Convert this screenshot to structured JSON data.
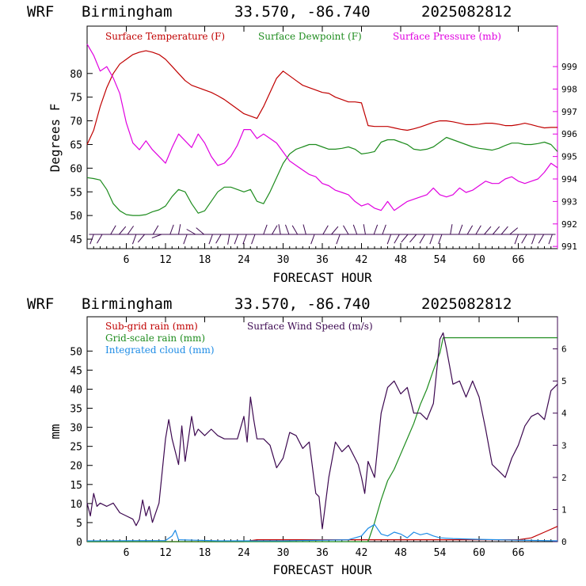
{
  "colors": {
    "temp": "#c00000",
    "dew": "#1e8c1e",
    "press": "#e000e0",
    "barb": "#3c0850",
    "subrain": "#c00000",
    "gridrain": "#1e8c1e",
    "cloud": "#1e8ce6",
    "wind": "#3c0850"
  },
  "chart_data": [
    {
      "type": "line",
      "header": {
        "model": "WRF",
        "station": "Birmingham",
        "coords": "33.570, -86.740",
        "init": "2025082812"
      },
      "xlabel": "FORECAST HOUR",
      "ylabel": "Degrees F",
      "x_ticks": [
        "6",
        "12",
        "18",
        "24",
        "30",
        "36",
        "42",
        "48",
        "54",
        "60",
        "66"
      ],
      "xlim": [
        0,
        72
      ],
      "ylim": [
        43,
        90
      ],
      "y_ticks": [
        "45",
        "50",
        "55",
        "60",
        "65",
        "70",
        "75",
        "80"
      ],
      "y2lim": [
        990.9,
        1000.8
      ],
      "y2_ticks": [
        "991",
        "992",
        "993",
        "994",
        "995",
        "996",
        "997",
        "998",
        "999"
      ],
      "legend": [
        "Surface Temperature (F)",
        "Surface Dewpoint (F)",
        "Surface Pressure (mb)"
      ],
      "series": [
        {
          "name": "Surface Temperature (F)",
          "axis": "left",
          "x": [
            0,
            1,
            2,
            3,
            4,
            5,
            6,
            7,
            8,
            9,
            10,
            11,
            12,
            13,
            14,
            15,
            16,
            17,
            18,
            19,
            20,
            21,
            22,
            23,
            24,
            25,
            26,
            27,
            28,
            29,
            30,
            31,
            32,
            33,
            34,
            35,
            36,
            37,
            38,
            39,
            40,
            41,
            42,
            43,
            44,
            45,
            46,
            47,
            48,
            49,
            50,
            51,
            52,
            53,
            54,
            55,
            56,
            57,
            58,
            59,
            60,
            61,
            62,
            63,
            64,
            65,
            66,
            67,
            68,
            69,
            70,
            71,
            72
          ],
          "values": [
            65,
            68,
            73,
            77,
            80,
            82,
            83,
            84,
            84.5,
            84.8,
            84.5,
            84,
            83,
            81.5,
            80,
            78.5,
            77.5,
            77,
            76.5,
            76,
            75.3,
            74.5,
            73.5,
            72.5,
            71.5,
            71,
            70.5,
            73,
            76,
            79,
            80.5,
            79.5,
            78.5,
            77.5,
            77,
            76.5,
            76,
            75.8,
            75,
            74.5,
            74,
            74,
            73.8,
            69,
            68.8,
            68.8,
            68.8,
            68.5,
            68.2,
            68,
            68.3,
            68.7,
            69.2,
            69.7,
            70,
            70,
            69.8,
            69.5,
            69.2,
            69.2,
            69.3,
            69.5,
            69.5,
            69.3,
            69,
            69,
            69.2,
            69.5,
            69.2,
            68.8,
            68.5,
            68.6,
            68.6
          ]
        },
        {
          "name": "Surface Dewpoint (F)",
          "axis": "left",
          "x": [
            0,
            1,
            2,
            3,
            4,
            5,
            6,
            7,
            8,
            9,
            10,
            11,
            12,
            13,
            14,
            15,
            16,
            17,
            18,
            19,
            20,
            21,
            22,
            23,
            24,
            25,
            26,
            27,
            28,
            29,
            30,
            31,
            32,
            33,
            34,
            35,
            36,
            37,
            38,
            39,
            40,
            41,
            42,
            43,
            44,
            45,
            46,
            47,
            48,
            49,
            50,
            51,
            52,
            53,
            54,
            55,
            56,
            57,
            58,
            59,
            60,
            61,
            62,
            63,
            64,
            65,
            66,
            67,
            68,
            69,
            70,
            71,
            72
          ],
          "values": [
            58,
            57.8,
            57.5,
            55.5,
            52.5,
            51,
            50.2,
            50,
            50,
            50.2,
            50.8,
            51.2,
            52,
            54,
            55.5,
            55,
            52.5,
            50.5,
            51,
            53,
            55,
            56,
            56,
            55.5,
            55,
            55.5,
            53,
            52.5,
            55,
            58,
            61,
            63,
            64,
            64.5,
            65,
            65,
            64.5,
            64,
            64,
            64.2,
            64.5,
            64,
            63,
            63.2,
            63.5,
            65.5,
            66,
            66,
            65.5,
            65,
            64,
            63.8,
            64,
            64.5,
            65.5,
            66.5,
            66,
            65.5,
            65,
            64.5,
            64.2,
            64,
            63.8,
            64.2,
            64.8,
            65.3,
            65.3,
            65,
            65,
            65.2,
            65.5,
            65,
            63.5
          ]
        },
        {
          "name": "Surface Pressure (mb)",
          "axis": "right",
          "x": [
            0,
            1,
            2,
            3,
            4,
            5,
            6,
            7,
            8,
            9,
            10,
            11,
            12,
            13,
            14,
            15,
            16,
            17,
            18,
            19,
            20,
            21,
            22,
            23,
            24,
            25,
            26,
            27,
            28,
            29,
            30,
            31,
            32,
            33,
            34,
            35,
            36,
            37,
            38,
            39,
            40,
            41,
            42,
            43,
            44,
            45,
            46,
            47,
            48,
            49,
            50,
            51,
            52,
            53,
            54,
            55,
            56,
            57,
            58,
            59,
            60,
            61,
            62,
            63,
            64,
            65,
            66,
            67,
            68,
            69,
            70,
            71,
            72
          ],
          "values": [
            1000,
            999.5,
            998.8,
            999,
            998.5,
            997.8,
            996.5,
            995.6,
            995.3,
            995.7,
            995.3,
            995.0,
            994.7,
            995.4,
            996.0,
            995.7,
            995.4,
            996.0,
            995.6,
            995.0,
            994.6,
            994.7,
            995.0,
            995.5,
            996.2,
            996.2,
            995.8,
            996.0,
            995.8,
            995.6,
            995.2,
            994.8,
            994.6,
            994.4,
            994.2,
            994.1,
            993.8,
            993.7,
            993.5,
            993.4,
            993.3,
            993.0,
            992.8,
            992.9,
            992.7,
            992.6,
            993.0,
            992.6,
            992.8,
            993.0,
            993.1,
            993.2,
            993.3,
            993.6,
            993.3,
            993.2,
            993.3,
            993.6,
            993.4,
            993.5,
            993.7,
            993.9,
            993.8,
            993.8,
            994.0,
            994.1,
            993.9,
            993.8,
            993.9,
            994.0,
            994.3,
            994.7,
            994.5
          ]
        }
      ],
      "wind_barbs_label": "wind barbs along the lower axis"
    },
    {
      "type": "line",
      "header": {
        "model": "WRF",
        "station": "Birmingham",
        "coords": "33.570, -86.740",
        "init": "2025082812"
      },
      "xlabel": "FORECAST HOUR",
      "ylabel": "mm",
      "x_ticks": [
        "6",
        "12",
        "18",
        "24",
        "30",
        "36",
        "42",
        "48",
        "54",
        "60",
        "66"
      ],
      "xlim": [
        0,
        72
      ],
      "ylim": [
        0,
        59
      ],
      "y_ticks": [
        "0",
        "5",
        "10",
        "15",
        "20",
        "25",
        "30",
        "35",
        "40",
        "45",
        "50"
      ],
      "y2lim": [
        0,
        7.0
      ],
      "y2_ticks": [
        "0",
        "1",
        "2",
        "3",
        "4",
        "5",
        "6"
      ],
      "legend": [
        "Sub-grid rain (mm)",
        "Grid-scale rain (mm)",
        "Integrated cloud (mm)",
        "Surface Wind Speed (m/s)"
      ],
      "series": [
        {
          "name": "Sub-grid rain (mm)",
          "axis": "left",
          "x": [
            0,
            24,
            26,
            44,
            66,
            68,
            70,
            72
          ],
          "values": [
            0,
            0,
            0.5,
            0.5,
            0.5,
            1.0,
            2.5,
            4.0
          ]
        },
        {
          "name": "Grid-scale rain (mm)",
          "axis": "left",
          "x": [
            0,
            43,
            44,
            45,
            46,
            47,
            48,
            49,
            50,
            51,
            52,
            53,
            54,
            54.5,
            72
          ],
          "values": [
            0,
            0,
            5,
            11,
            16,
            19,
            23,
            27,
            31,
            36,
            40,
            45,
            49.5,
            53.5,
            53.5
          ]
        },
        {
          "name": "Integrated cloud (mm)",
          "axis": "left",
          "x": [
            0,
            12,
            13,
            13.5,
            14,
            20,
            30,
            40,
            42,
            43,
            44,
            45,
            46,
            47,
            48,
            49,
            50,
            51,
            52,
            53,
            54,
            56,
            60,
            66,
            72
          ],
          "values": [
            0.2,
            0.3,
            1.5,
            3.0,
            0.5,
            0.2,
            0.2,
            0.5,
            1.5,
            3.5,
            4.5,
            2.0,
            1.5,
            2.5,
            2.0,
            1.0,
            2.5,
            1.8,
            2.2,
            1.5,
            1.0,
            0.8,
            0.6,
            0.4,
            0.2
          ]
        },
        {
          "name": "Surface Wind Speed (m/s)",
          "axis": "right",
          "x": [
            0,
            0.5,
            1,
            1.5,
            2,
            3,
            4,
            5,
            6,
            7,
            7.5,
            8,
            8.5,
            9,
            9.5,
            10,
            11,
            12,
            12.5,
            13,
            14,
            14.5,
            15,
            16,
            16.5,
            17,
            18,
            19,
            20,
            21,
            22,
            23,
            24,
            24.5,
            25,
            25.5,
            26,
            27,
            28,
            29,
            30,
            31,
            32,
            33,
            34,
            35,
            35.5,
            36,
            37,
            38,
            39,
            40,
            41,
            41.5,
            42,
            42.5,
            43,
            44,
            45,
            46,
            47,
            48,
            49,
            50,
            51,
            52,
            53,
            54,
            54.5,
            55,
            56,
            57,
            58,
            59,
            60,
            61,
            62,
            63,
            64,
            65,
            66,
            67,
            68,
            69,
            70,
            71,
            72
          ],
          "values": [
            1.2,
            0.8,
            1.5,
            1.1,
            1.2,
            1.1,
            1.2,
            0.9,
            0.8,
            0.7,
            0.5,
            0.7,
            1.3,
            0.8,
            1.1,
            0.6,
            1.2,
            3.2,
            3.8,
            3.2,
            2.4,
            3.6,
            2.5,
            3.9,
            3.3,
            3.5,
            3.3,
            3.5,
            3.3,
            3.2,
            3.2,
            3.2,
            3.9,
            3.1,
            4.5,
            3.8,
            3.2,
            3.2,
            3.0,
            2.3,
            2.6,
            3.4,
            3.3,
            2.9,
            3.1,
            1.5,
            1.4,
            0.4,
            2.0,
            3.1,
            2.8,
            3.0,
            2.6,
            2.4,
            2.0,
            1.5,
            2.5,
            2.0,
            4.0,
            4.8,
            5.0,
            4.6,
            4.8,
            4.0,
            4.0,
            3.8,
            4.3,
            6.3,
            6.5,
            6.0,
            4.9,
            5.0,
            4.5,
            5.0,
            4.5,
            3.5,
            2.4,
            2.2,
            2.0,
            2.6,
            3.0,
            3.6,
            3.9,
            4.0,
            3.8,
            4.7,
            4.9
          ]
        }
      ]
    }
  ]
}
